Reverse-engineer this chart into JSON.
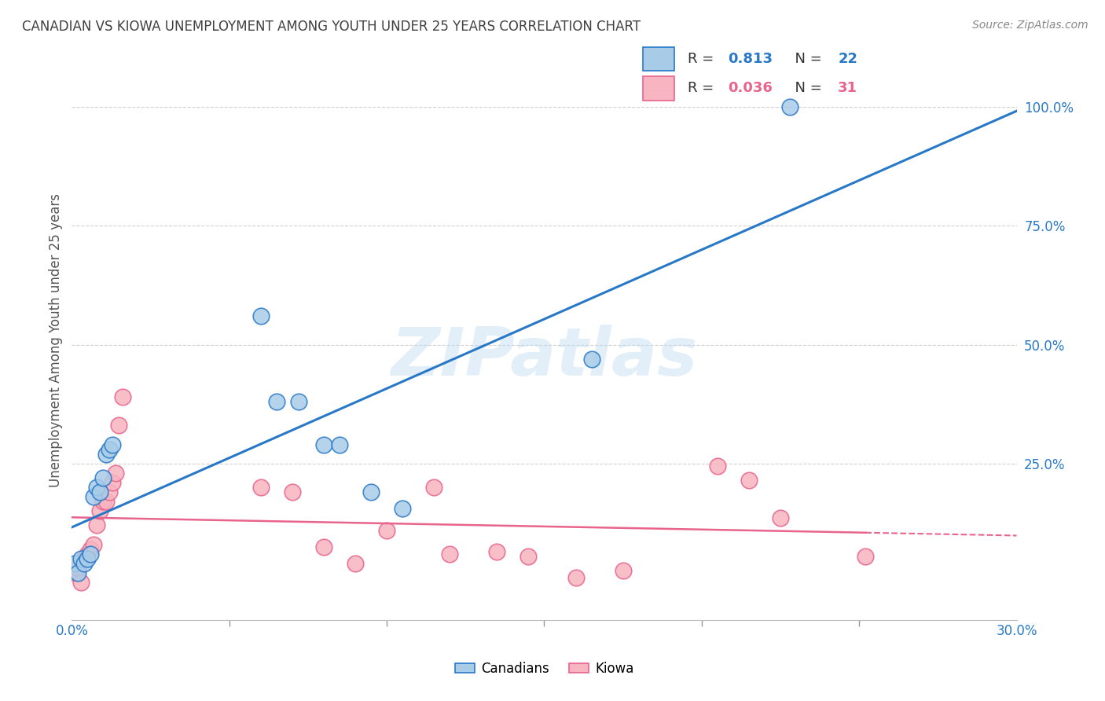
{
  "title": "CANADIAN VS KIOWA UNEMPLOYMENT AMONG YOUTH UNDER 25 YEARS CORRELATION CHART",
  "source": "Source: ZipAtlas.com",
  "ylabel": "Unemployment Among Youth under 25 years",
  "xlim": [
    0.0,
    0.3
  ],
  "ylim": [
    -0.08,
    1.1
  ],
  "ytick_vals": [
    0.25,
    0.5,
    0.75,
    1.0
  ],
  "ytick_labels": [
    "25.0%",
    "50.0%",
    "75.0%",
    "100.0%"
  ],
  "xtick_minor_vals": [
    0.05,
    0.1,
    0.15,
    0.2,
    0.25
  ],
  "watermark": "ZIPatlas",
  "canadian_R": "0.813",
  "canadian_N": "22",
  "kiowa_R": "0.036",
  "kiowa_N": "31",
  "canadians_x": [
    0.001,
    0.002,
    0.003,
    0.004,
    0.005,
    0.006,
    0.007,
    0.008,
    0.009,
    0.01,
    0.011,
    0.012,
    0.013,
    0.06,
    0.065,
    0.072,
    0.08,
    0.085,
    0.095,
    0.105,
    0.165,
    0.228
  ],
  "canadians_y": [
    0.04,
    0.02,
    0.05,
    0.04,
    0.05,
    0.06,
    0.18,
    0.2,
    0.19,
    0.22,
    0.27,
    0.28,
    0.29,
    0.56,
    0.38,
    0.38,
    0.29,
    0.29,
    0.19,
    0.155,
    0.47,
    1.0
  ],
  "kiowa_x": [
    0.001,
    0.002,
    0.003,
    0.004,
    0.005,
    0.006,
    0.007,
    0.008,
    0.009,
    0.01,
    0.011,
    0.012,
    0.013,
    0.014,
    0.015,
    0.016,
    0.06,
    0.07,
    0.08,
    0.09,
    0.1,
    0.115,
    0.12,
    0.135,
    0.145,
    0.16,
    0.175,
    0.205,
    0.215,
    0.225,
    0.252
  ],
  "kiowa_y": [
    0.02,
    0.03,
    0.0,
    0.05,
    0.06,
    0.07,
    0.08,
    0.12,
    0.15,
    0.17,
    0.17,
    0.19,
    0.21,
    0.23,
    0.33,
    0.39,
    0.2,
    0.19,
    0.075,
    0.04,
    0.11,
    0.2,
    0.06,
    0.065,
    0.055,
    0.01,
    0.025,
    0.245,
    0.215,
    0.135,
    0.055
  ],
  "canadian_line_color": "#2878c8",
  "kiowa_line_color": "#e8648c",
  "canadian_scatter_face": "#a8cce8",
  "kiowa_scatter_face": "#f8b4c0",
  "background_color": "#ffffff",
  "grid_color": "#d0d0d0",
  "title_color": "#404040",
  "axis_label_color": "#555555",
  "right_tick_color": "#2878c8",
  "bottom_tick_color": "#2878c8"
}
